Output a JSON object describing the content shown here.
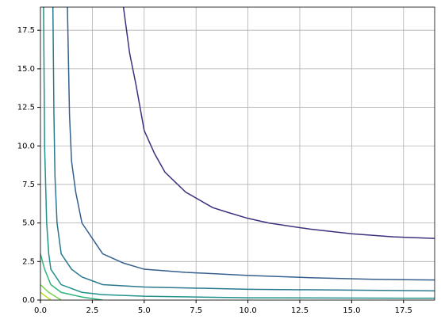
{
  "chart_data": {
    "type": "line",
    "xlim": [
      0,
      19
    ],
    "ylim": [
      0,
      19
    ],
    "xticks": [
      {
        "value": 0,
        "label": "0.0"
      },
      {
        "value": 2.5,
        "label": "2.5"
      },
      {
        "value": 5,
        "label": "5.0"
      },
      {
        "value": 7.5,
        "label": "7.5"
      },
      {
        "value": 10,
        "label": "10.0"
      },
      {
        "value": 12.5,
        "label": "12.5"
      },
      {
        "value": 15,
        "label": "15.0"
      },
      {
        "value": 17.5,
        "label": "17.5"
      }
    ],
    "yticks": [
      {
        "value": 0,
        "label": "0.0"
      },
      {
        "value": 2.5,
        "label": "2.5"
      },
      {
        "value": 5,
        "label": "5.0"
      },
      {
        "value": 7.5,
        "label": "7.5"
      },
      {
        "value": 10,
        "label": "10.0"
      },
      {
        "value": 12.5,
        "label": "12.5"
      },
      {
        "value": 15,
        "label": "15.0"
      },
      {
        "value": 17.5,
        "label": "17.5"
      }
    ],
    "grid": true,
    "series": [
      {
        "color": "#3e2f7f",
        "x": [
          4,
          4.3,
          4.6,
          5,
          5.5,
          6,
          7,
          8.3,
          9,
          10,
          11,
          13,
          15,
          17,
          19
        ],
        "values": [
          19,
          16,
          14,
          11,
          9.5,
          8.3,
          7,
          6,
          5.7,
          5.3,
          5,
          4.6,
          4.3,
          4.1,
          4
        ]
      },
      {
        "color": "#355f8d",
        "x": [
          1.3,
          1.4,
          1.5,
          1.7,
          2,
          2.5,
          3,
          4,
          5,
          7,
          10,
          13,
          16,
          19
        ],
        "values": [
          19,
          12,
          9,
          7,
          5,
          4,
          3,
          2.4,
          2,
          1.8,
          1.6,
          1.45,
          1.35,
          1.3
        ]
      },
      {
        "color": "#2a788e",
        "x": [
          0.6,
          0.65,
          0.7,
          0.8,
          1,
          1.5,
          2,
          3,
          5,
          10,
          19
        ],
        "values": [
          19,
          12,
          8,
          5,
          3,
          2,
          1.5,
          1,
          0.85,
          0.7,
          0.6
        ]
      },
      {
        "color": "#21918c",
        "x": [
          0.15,
          0.2,
          0.3,
          0.4,
          0.5,
          1,
          2,
          3,
          5,
          10,
          19
        ],
        "values": [
          19,
          10,
          5,
          3,
          2,
          1,
          0.5,
          0.35,
          0.25,
          0.15,
          0.12
        ]
      },
      {
        "color": "#2fb47c",
        "x": [
          0,
          0.2,
          0.5,
          1,
          2,
          3
        ],
        "values": [
          3,
          2,
          1,
          0.5,
          0.2,
          0
        ]
      },
      {
        "color": "#7ad151",
        "x": [
          0,
          0.4,
          1
        ],
        "values": [
          1,
          0.5,
          0
        ]
      },
      {
        "color": "#bddf26",
        "x": [
          0,
          0.5
        ],
        "values": [
          0.5,
          0
        ]
      }
    ]
  }
}
